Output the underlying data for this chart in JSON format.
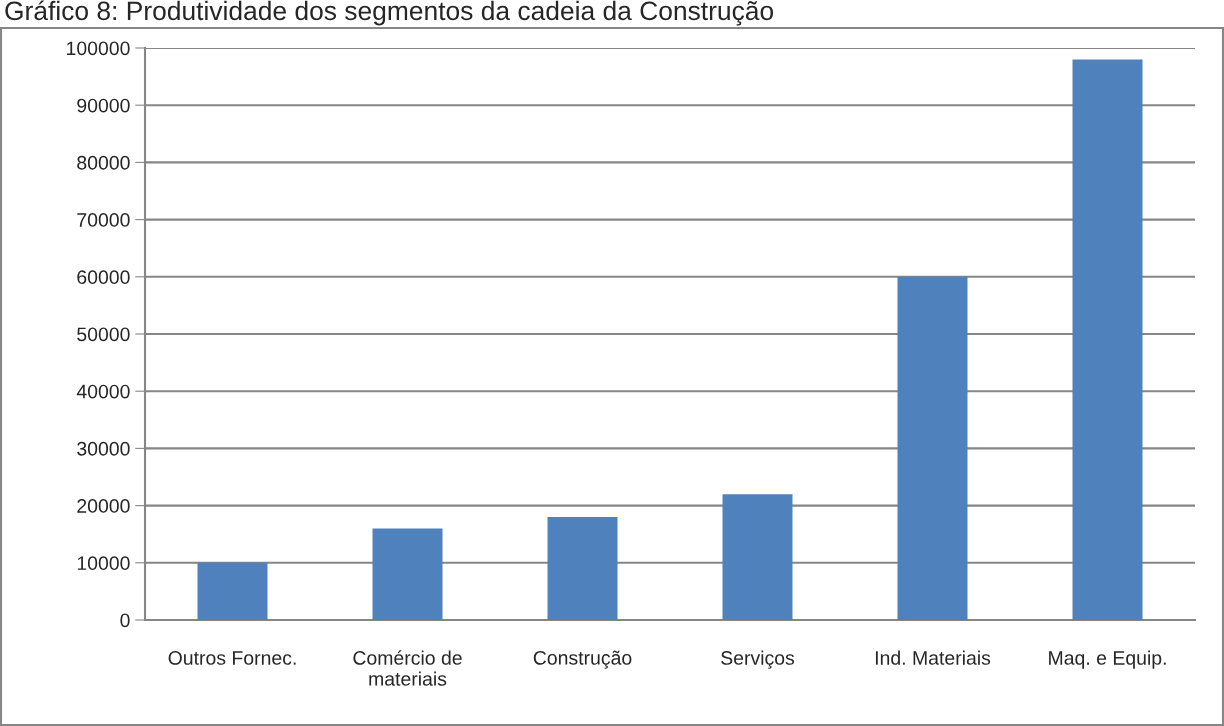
{
  "chart_data": {
    "type": "bar",
    "title": "Gráfico 8: Produtividade dos segmentos da cadeia da Construção",
    "categories": [
      "Outros Fornec.",
      "Comércio de\nmateriais",
      "Construção",
      "Serviços",
      "Ind. Materiais",
      "Maq. e Equip."
    ],
    "values": [
      10000,
      16000,
      18000,
      22000,
      60000,
      98000
    ],
    "color": "#4f81bd",
    "ylim": [
      0,
      100000
    ],
    "yticks": [
      0,
      10000,
      20000,
      30000,
      40000,
      50000,
      60000,
      70000,
      80000,
      90000,
      100000
    ],
    "grid": "y"
  }
}
